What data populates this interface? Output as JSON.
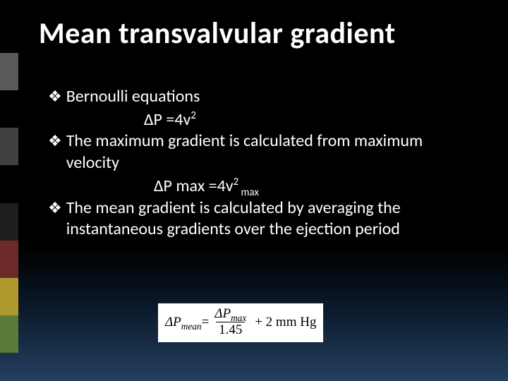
{
  "title": "Mean transvalvular gradient",
  "bars": [
    "#595959",
    "#000000",
    "#404040",
    "#000000",
    "#1f1f1f",
    "#6e2a2a",
    "#b09a2e",
    "#5a7a3a"
  ],
  "bullet_mark": "❖",
  "bullets": {
    "b1": "Bernoulli equations",
    "f1_a": "ΔP =4v",
    "f1_sup": "2",
    "b2": "The maximum gradient is calculated from maximum velocity",
    "f2_a": "ΔP max =4v",
    "f2_sup": "2",
    "f2_sub": " max",
    "b3": "The mean gradient is calculated by averaging the instantaneous gradients over the ejection period"
  },
  "equation": {
    "lhs_sym": "ΔP",
    "lhs_sub": "mean",
    "eq": " = ",
    "num_sym": "ΔP",
    "num_sub": "max",
    "den": "1.45",
    "tail": " + 2 mm Hg"
  }
}
